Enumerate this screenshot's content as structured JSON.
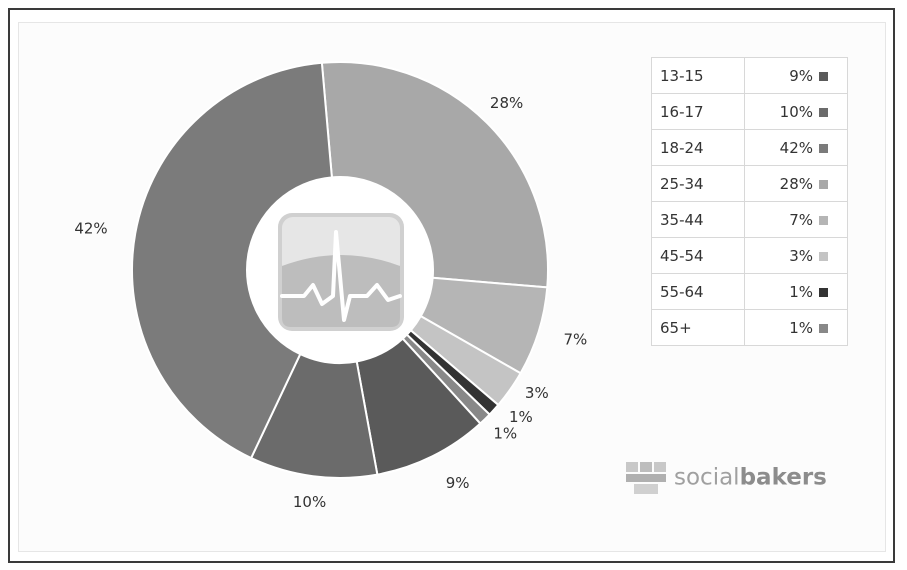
{
  "chart_data": {
    "type": "pie",
    "categories": [
      "13-15",
      "16-17",
      "18-24",
      "25-34",
      "35-44",
      "45-54",
      "55-64",
      "65+"
    ],
    "values": [
      9,
      10,
      42,
      28,
      7,
      3,
      1,
      1
    ],
    "labels": [
      "9%",
      "10%",
      "42%",
      "28%",
      "7%",
      "3%",
      "1%",
      "1%"
    ],
    "colors": [
      "#5a5a5a",
      "#6b6b6b",
      "#7b7b7b",
      "#a8a8a8",
      "#b5b5b5",
      "#c4c4c4",
      "#333333",
      "#888888"
    ],
    "title": "",
    "legend_position": "right",
    "center_icon": "heartbeat-icon"
  },
  "brand": {
    "light": "social",
    "bold": "bakers",
    "icon": "socialbakers-logo-icon"
  }
}
